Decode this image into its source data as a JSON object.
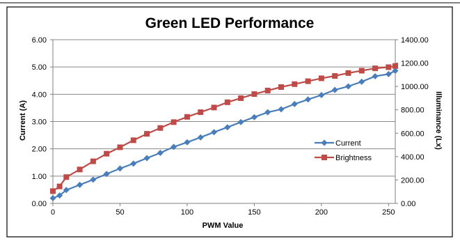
{
  "colors": {
    "current": "#4a7ebb",
    "brightness": "#be4b48",
    "grid": "#888888",
    "axis": "#7f7f7f",
    "frame": "#000000"
  },
  "chart_data": {
    "type": "line",
    "title": "Green LED Performance",
    "xlabel": "PWM Value",
    "ylabel": "Current (A)",
    "y2label": "Illuminance (Lx)",
    "xlim": [
      0,
      255
    ],
    "ylim": [
      0,
      6
    ],
    "y2lim": [
      0,
      1400
    ],
    "xticks": [
      0,
      50,
      100,
      150,
      200,
      250
    ],
    "xtick_labels": [
      "0",
      "50",
      "100",
      "150",
      "200",
      "250"
    ],
    "yticks": [
      0,
      1,
      2,
      3,
      4,
      5,
      6
    ],
    "ytick_labels": [
      "0.00",
      "1.00",
      "2.00",
      "3.00",
      "4.00",
      "5.00",
      "6.00"
    ],
    "y2ticks": [
      0,
      200,
      400,
      600,
      800,
      1000,
      1200,
      1400
    ],
    "y2tick_labels": [
      "0.00",
      "200.00",
      "400.00",
      "600.00",
      "800.00",
      "1000.00",
      "1200.00",
      "1400.00"
    ],
    "grid": "horizontal",
    "legend_position": "right",
    "series": [
      {
        "name": "Current",
        "axis": "left",
        "marker": "diamond",
        "x": [
          0,
          5,
          10,
          20,
          30,
          40,
          50,
          60,
          70,
          80,
          90,
          100,
          110,
          120,
          130,
          140,
          150,
          160,
          170,
          180,
          190,
          200,
          210,
          220,
          230,
          240,
          250,
          255
        ],
        "values": [
          0.19,
          0.29,
          0.49,
          0.68,
          0.87,
          1.08,
          1.28,
          1.46,
          1.66,
          1.85,
          2.07,
          2.24,
          2.42,
          2.61,
          2.79,
          2.98,
          3.16,
          3.34,
          3.45,
          3.64,
          3.81,
          3.97,
          4.16,
          4.29,
          4.46,
          4.66,
          4.74,
          4.86
        ]
      },
      {
        "name": "Brightness",
        "axis": "right",
        "marker": "square",
        "x": [
          0,
          5,
          10,
          20,
          30,
          40,
          50,
          60,
          70,
          80,
          90,
          100,
          110,
          120,
          130,
          140,
          150,
          160,
          170,
          180,
          190,
          200,
          210,
          220,
          230,
          240,
          250,
          255
        ],
        "values": [
          105,
          145,
          225,
          290,
          360,
          425,
          480,
          540,
          595,
          645,
          695,
          740,
          780,
          820,
          865,
          900,
          935,
          965,
          995,
          1020,
          1045,
          1070,
          1090,
          1115,
          1135,
          1155,
          1165,
          1175
        ]
      }
    ]
  }
}
